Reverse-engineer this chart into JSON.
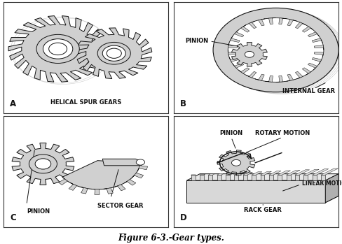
{
  "figure_caption": "Figure 6-3.-Gear types.",
  "bg_color": "#ffffff",
  "line_color": "#111111",
  "gear_fill": "#d0d0d0",
  "border_color": "#333333",
  "caption_fontsize": 8.5,
  "label_fontsize": 6.0,
  "panel_label_fontsize": 8.5,
  "labels": {
    "A_title": "HELICAL SPUR GEARS",
    "B_pinion": "PINION",
    "B_internal": "INTERNAL GEAR",
    "C_pinion": "PINION",
    "C_sector": "SECTOR GEAR",
    "D_pinion": "PINION",
    "D_rotary": "ROTARY MOTION",
    "D_linear": "LINEAR MOTION",
    "D_rack": "RACK GEAR"
  }
}
